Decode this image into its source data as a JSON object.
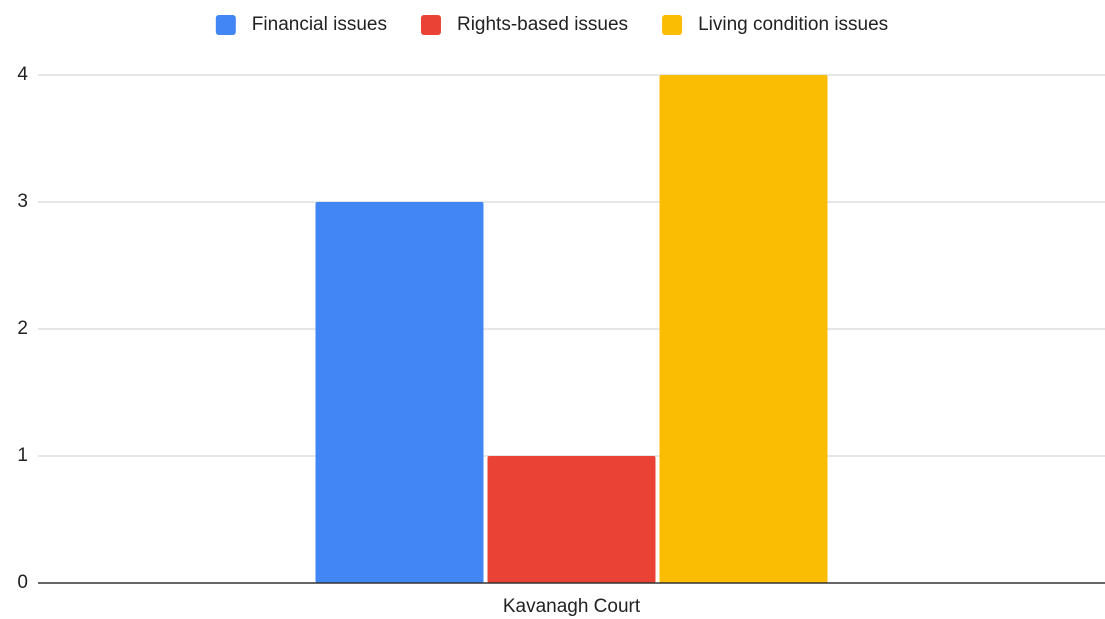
{
  "chart_data": {
    "type": "bar",
    "categories": [
      "Kavanagh Court"
    ],
    "series": [
      {
        "name": "Financial issues",
        "color": "#4285f4",
        "values": [
          3
        ]
      },
      {
        "name": "Rights-based issues",
        "color": "#ea4335",
        "values": [
          1
        ]
      },
      {
        "name": "Living condition issues",
        "color": "#fbbc04",
        "values": [
          4
        ]
      }
    ],
    "ylim": [
      0,
      4
    ],
    "yticks": [
      0,
      1,
      2,
      3,
      4
    ],
    "grid": true,
    "legend": "top"
  }
}
